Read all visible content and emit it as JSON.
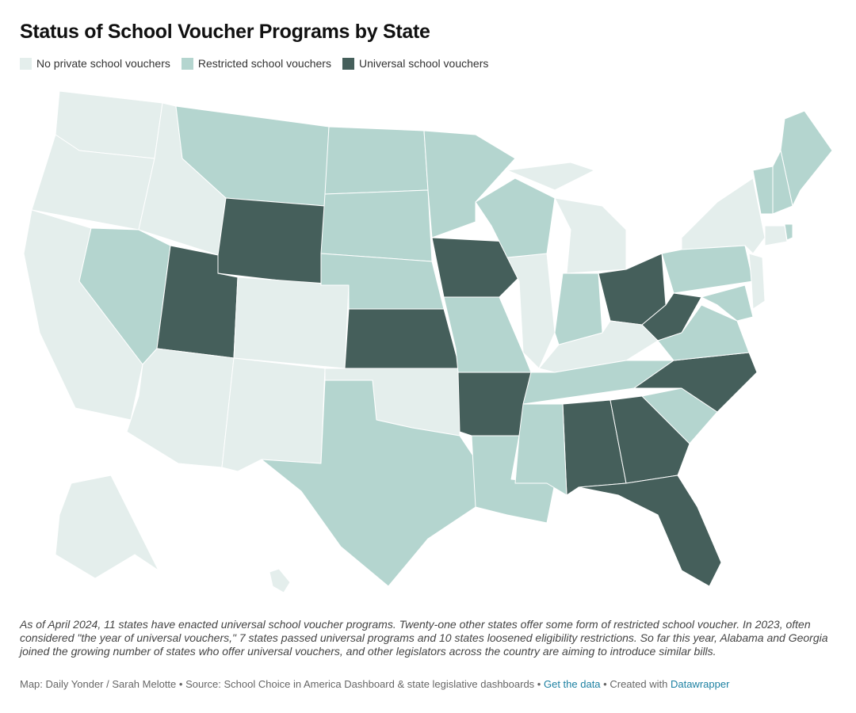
{
  "title": "Status of School Voucher Programs by State",
  "legend": [
    {
      "label": "No private school vouchers",
      "color": "#e4eeec"
    },
    {
      "label": "Restricted school vouchers",
      "color": "#b4d5cf"
    },
    {
      "label": "Universal school vouchers",
      "color": "#455f5b"
    }
  ],
  "state_status": [
    0,
    0,
    0,
    0,
    1,
    1,
    2,
    2,
    0,
    0,
    0,
    1,
    1,
    1,
    2,
    0,
    1,
    2,
    1,
    2,
    1,
    1,
    0,
    0,
    1,
    2,
    0,
    0,
    1,
    1,
    2,
    2,
    2,
    1,
    2,
    1,
    2,
    1,
    0,
    1,
    1,
    0,
    0,
    1,
    1,
    1,
    1,
    0,
    0
  ],
  "description": "As of April 2024, 11 states have enacted universal school voucher programs. Twenty-one other states offer some form of restricted school voucher. In 2023, often considered \"the year of universal vouchers,\" 7 states passed universal programs and 10 states loosened eligibility restrictions. So far this year, Alabama and Georgia joined the growing number of states who offer universal vouchers, and other legislators across the country are aiming to introduce similar bills.",
  "footer": {
    "credit": "Map: Daily Yonder / Sarah Melotte",
    "separator": "•",
    "source": "Source: School Choice in America Dashboard & state legislative dashboards",
    "get_data": "Get the data",
    "created_with": "Created with",
    "tool": "Datawrapper"
  }
}
